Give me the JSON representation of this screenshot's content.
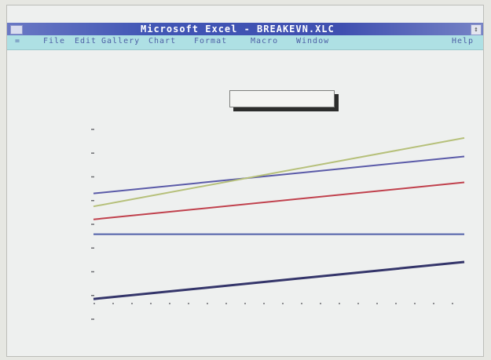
{
  "window": {
    "title": "Microsoft Excel - BREAKEVN.XLC",
    "control_menu_icon": "system-menu-icon",
    "size_icon": "restore-icon"
  },
  "menu": {
    "system": "=",
    "file": "File",
    "edit": "Edit",
    "gallery": "Gallery",
    "chart": "Chart",
    "format": "Format",
    "macro": "Macro",
    "window": "Window",
    "help": "Help"
  },
  "chart_data": {
    "type": "line",
    "title": "",
    "xlabel": "",
    "ylabel": "",
    "x": [
      0,
      1
    ],
    "series": [
      {
        "color": "#5a5aa8",
        "values": [
          0.62,
          0.82
        ]
      },
      {
        "color": "#b6c07a",
        "values": [
          0.55,
          0.92
        ]
      },
      {
        "color": "#c0404c",
        "values": [
          0.48,
          0.68
        ]
      },
      {
        "color": "#4f5ea8",
        "values": [
          0.4,
          0.4
        ]
      },
      {
        "color": "#34356a",
        "values": [
          0.05,
          0.25
        ]
      }
    ],
    "ylim": [
      0,
      1
    ],
    "grid": false,
    "legend": "none"
  },
  "colors": {
    "titlebar": "#4156b5",
    "menubar": "#aee0e4",
    "window_bg": "#eef0ef"
  }
}
